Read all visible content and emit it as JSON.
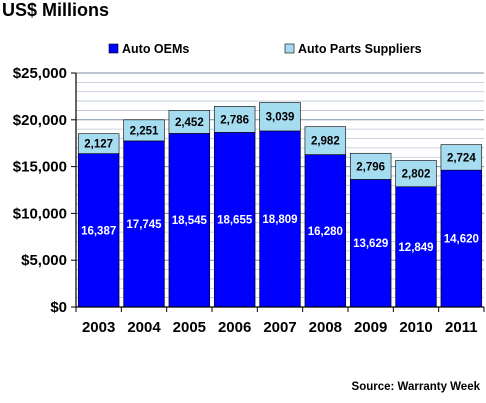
{
  "chart_data": {
    "type": "bar",
    "stacked": true,
    "title": "US$ Millions",
    "categories": [
      "2003",
      "2004",
      "2005",
      "2006",
      "2007",
      "2008",
      "2009",
      "2010",
      "2011"
    ],
    "series": [
      {
        "name": "Auto OEMs",
        "color": "#0000ff",
        "values": [
          16387,
          17745,
          18545,
          18655,
          18809,
          16280,
          13629,
          12849,
          14620
        ],
        "labels": [
          "16,387",
          "17,745",
          "18,545",
          "18,655",
          "18,809",
          "16,280",
          "13,629",
          "12,849",
          "14,620"
        ]
      },
      {
        "name": "Auto Parts Suppliers",
        "color": "#a6dcf0",
        "values": [
          2127,
          2251,
          2452,
          2786,
          3039,
          2982,
          2796,
          2802,
          2724
        ],
        "labels": [
          "2,127",
          "2,251",
          "2,452",
          "2,786",
          "3,039",
          "2,982",
          "2,796",
          "2,802",
          "2,724"
        ]
      }
    ],
    "ylim": [
      0,
      25000
    ],
    "yticks": [
      0,
      5000,
      10000,
      15000,
      20000,
      25000
    ],
    "ytick_labels": [
      "$0",
      "$5,000",
      "$10,000",
      "$15,000",
      "$20,000",
      "$25,000"
    ],
    "grid": true,
    "legend": "top",
    "source": "Source: Warranty Week"
  }
}
